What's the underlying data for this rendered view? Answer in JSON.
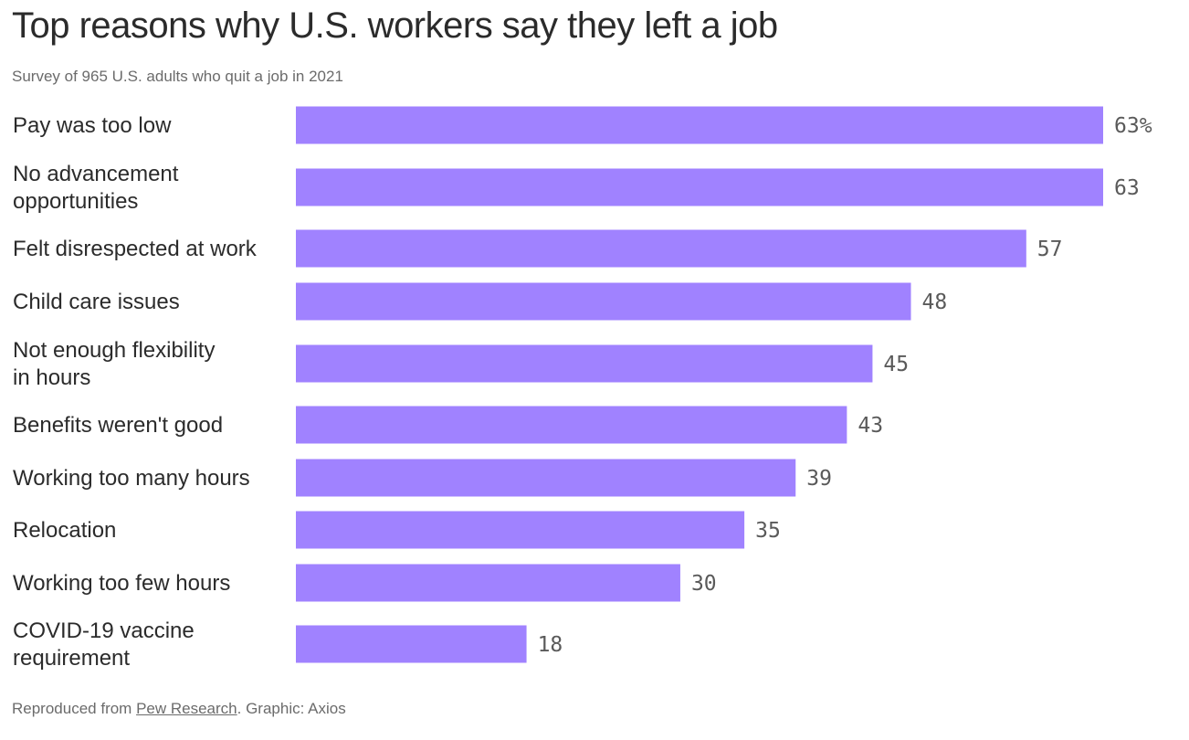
{
  "title": "Top reasons why U.S. workers say they left a job",
  "subtitle": "Survey of 965 U.S. adults who quit a job in 2021",
  "footer": {
    "prefix": "Reproduced from ",
    "source_link": "Pew Research",
    "suffix": ". Graphic: Axios"
  },
  "colors": {
    "bar": "#a082ff",
    "text": "#2b2b2b",
    "muted": "#6b6b6b"
  },
  "chart_data": {
    "type": "bar",
    "orientation": "horizontal",
    "categories": [
      "Pay was too low",
      "No advancement opportunities",
      "Felt disrespected at work",
      "Child care issues",
      "Not enough flexibility in hours",
      "Benefits weren't good",
      "Working too many hours",
      "Relocation",
      "Working too few hours",
      "COVID-19 vaccine requirement"
    ],
    "category_lines": [
      [
        "Pay was too low"
      ],
      [
        "No advancement",
        "opportunities"
      ],
      [
        "Felt disrespected at work"
      ],
      [
        "Child care issues"
      ],
      [
        "Not enough flexibility",
        "in hours"
      ],
      [
        "Benefits weren't good"
      ],
      [
        "Working too many hours"
      ],
      [
        "Relocation"
      ],
      [
        "Working too few hours"
      ],
      [
        "COVID-19 vaccine",
        "requirement"
      ]
    ],
    "values": [
      63,
      63,
      57,
      48,
      45,
      43,
      39,
      35,
      30,
      18
    ],
    "value_labels": [
      "63%",
      "63",
      "57",
      "48",
      "45",
      "43",
      "39",
      "35",
      "30",
      "18"
    ],
    "xlim": [
      0,
      63
    ],
    "grid": false,
    "legend": "none"
  }
}
